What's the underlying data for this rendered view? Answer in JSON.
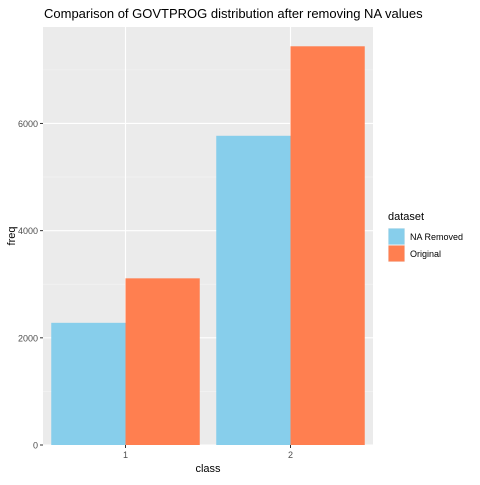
{
  "chart_data": {
    "type": "bar",
    "title": "Comparison of GOVTPROG distribution after removing NA values",
    "xlabel": "class",
    "ylabel": "freq",
    "categories": [
      "1",
      "2"
    ],
    "series": [
      {
        "name": "NA Removed",
        "color": "#87CEEB",
        "values": [
          2280,
          5770
        ]
      },
      {
        "name": "Original",
        "color": "#FF7F50",
        "values": [
          3110,
          7440
        ]
      }
    ],
    "ylim": [
      0,
      7800
    ],
    "yticks": [
      0,
      2000,
      4000,
      6000
    ],
    "ytick_labels": [
      "0",
      "2000",
      "4000",
      "6000"
    ],
    "grid": true,
    "panel_background": "#EBEBEB",
    "legend": {
      "title": "dataset",
      "position": "right",
      "entries": [
        "NA Removed",
        "Original"
      ]
    }
  }
}
